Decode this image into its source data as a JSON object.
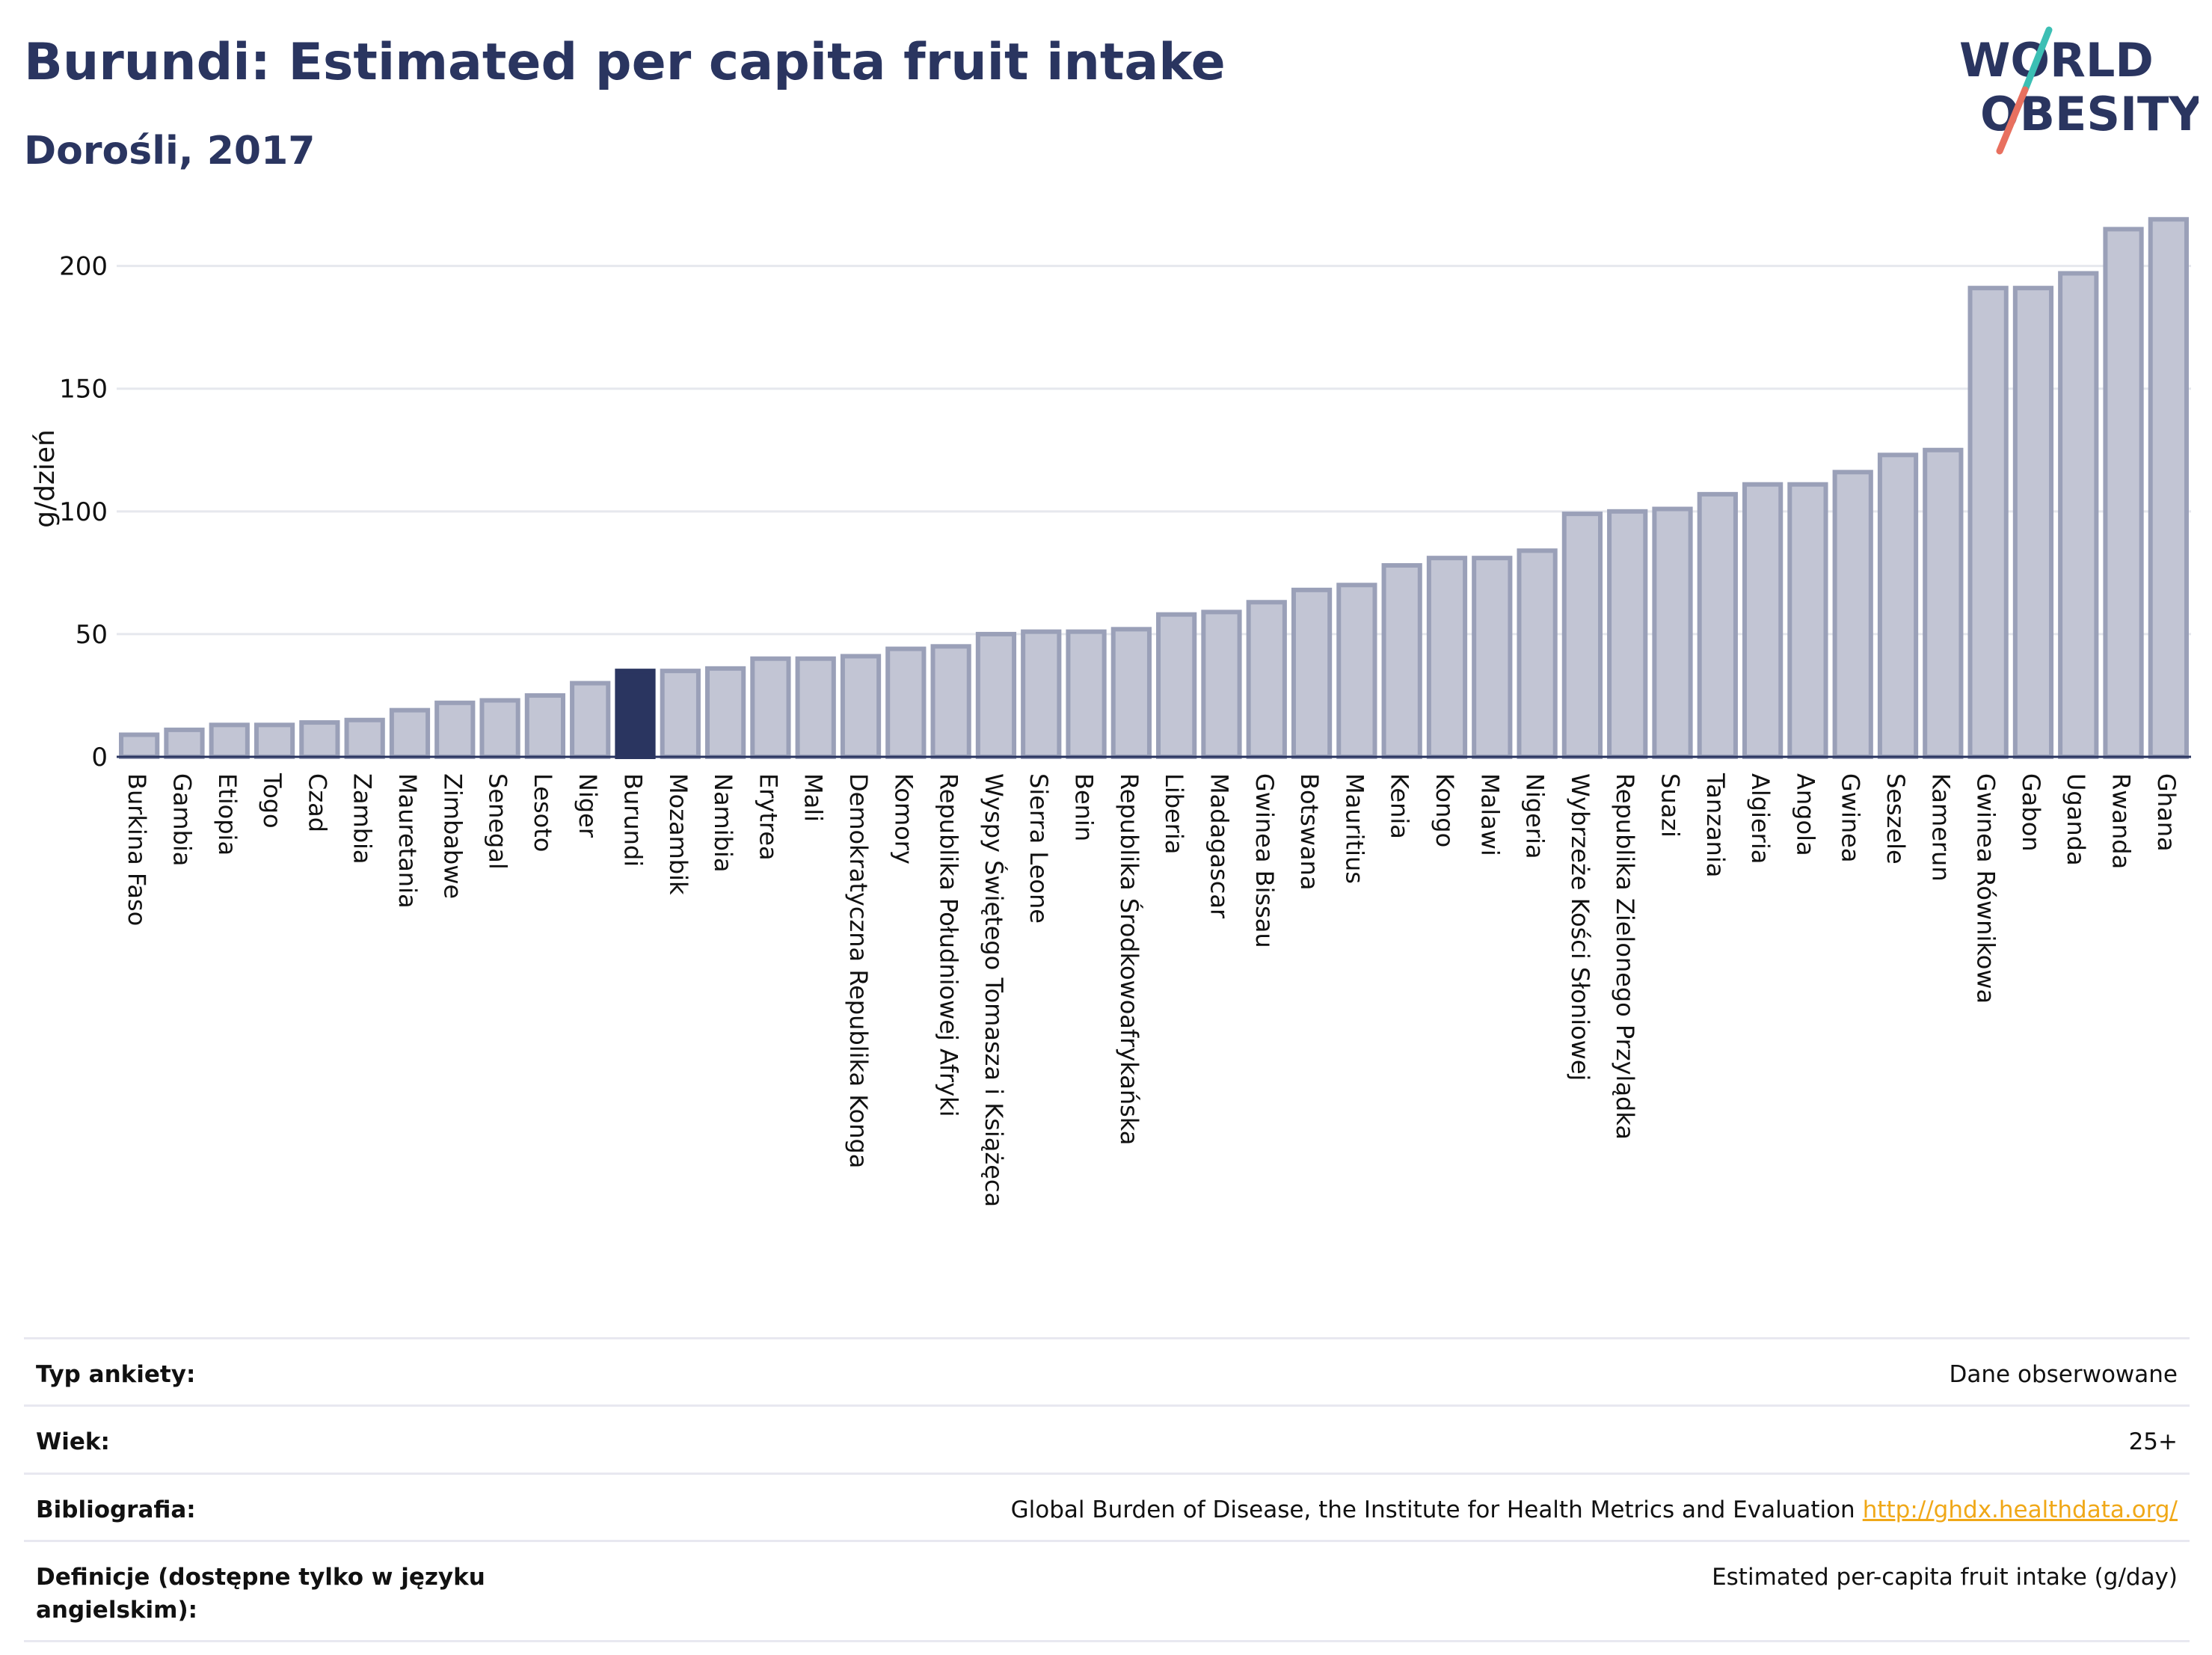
{
  "header": {
    "title": "Burundi: Estimated per capita fruit intake",
    "subtitle": "Dorośli, 2017"
  },
  "logo": {
    "line1": "WORLD",
    "line2": "OBESITY",
    "colors": {
      "text": "#2a3560",
      "slash_top": "#3cbfb4",
      "slash_bottom": "#e8705f"
    }
  },
  "colors": {
    "bar_default": "#c2c5d4",
    "bar_default_border": "#9aa0b8",
    "bar_highlight": "#2a3560",
    "axis": "#2a3560",
    "grid": "#e6e8ee"
  },
  "chart_data": {
    "type": "bar",
    "ylabel": "g/dzień",
    "ylim": [
      0,
      220
    ],
    "yticks": [
      0,
      50,
      100,
      150,
      200
    ],
    "grid": true,
    "highlight": "Burundi",
    "categories": [
      "Burkina Faso",
      "Gambia",
      "Etiopia",
      "Togo",
      "Czad",
      "Zambia",
      "Mauretania",
      "Zimbabwe",
      "Senegal",
      "Lesoto",
      "Niger",
      "Burundi",
      "Mozambik",
      "Namibia",
      "Erytrea",
      "Mali",
      "Demokratyczna Republika Konga",
      "Komory",
      "Republika Południowej Afryki",
      "Wyspy Świętego Tomasza i Książęca",
      "Sierra Leone",
      "Benin",
      "Republika Środkowoafrykańska",
      "Liberia",
      "Madagascar",
      "Gwinea Bissau",
      "Botswana",
      "Mauritius",
      "Kenia",
      "Kongo",
      "Malawi",
      "Nigeria",
      "Wybrzeże Kości Słoniowej",
      "Republika Zielonego Przylądka",
      "Suazi",
      "Tanzania",
      "Algieria",
      "Angola",
      "Gwinea",
      "Seszele",
      "Kamerun",
      "Gwinea Równikowa",
      "Gabon",
      "Uganda",
      "Rwanda",
      "Ghana"
    ],
    "values": [
      9,
      11,
      13,
      13,
      14,
      15,
      19,
      22,
      23,
      25,
      30,
      35,
      35,
      36,
      40,
      40,
      41,
      44,
      45,
      50,
      51,
      51,
      52,
      58,
      59,
      63,
      68,
      70,
      78,
      81,
      81,
      84,
      99,
      100,
      101,
      107,
      111,
      111,
      116,
      123,
      125,
      191,
      191,
      197,
      215,
      219
    ]
  },
  "info": {
    "rows": [
      {
        "label": "Typ ankiety:",
        "value": "Dane obserwowane"
      },
      {
        "label": "Wiek:",
        "value": "25+"
      },
      {
        "label": "Bibliografia:",
        "value": "Global Burden of Disease, the Institute for Health Metrics and Evaluation",
        "link": "http://ghdx.healthdata.org/"
      },
      {
        "label": "Definicje (dostępne tylko w języku angielskim):",
        "value": "Estimated per-capita fruit intake (g/day)"
      }
    ]
  }
}
